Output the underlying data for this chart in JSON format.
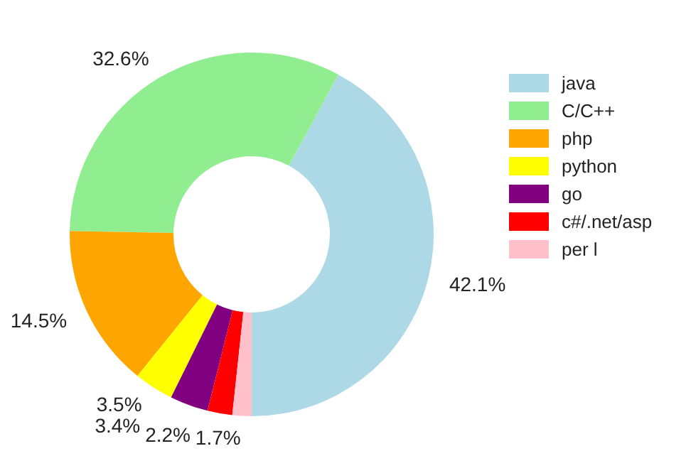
{
  "chart_data": {
    "type": "donut",
    "categories": [
      "java",
      "C/C++",
      "php",
      "python",
      "go",
      "c#/.net/asp",
      "per l"
    ],
    "values": [
      42.1,
      32.6,
      14.5,
      3.5,
      3.4,
      2.2,
      1.7
    ],
    "colors": [
      "#add8e6",
      "#90ee90",
      "#ffa500",
      "#ffff00",
      "#800080",
      "#ff0000",
      "#ffc0cb"
    ],
    "value_labels": [
      "42.1%",
      "32.6%",
      "14.5%",
      "3.5%",
      "3.4%",
      "2.2%",
      "1.7%"
    ],
    "legend": "right"
  }
}
